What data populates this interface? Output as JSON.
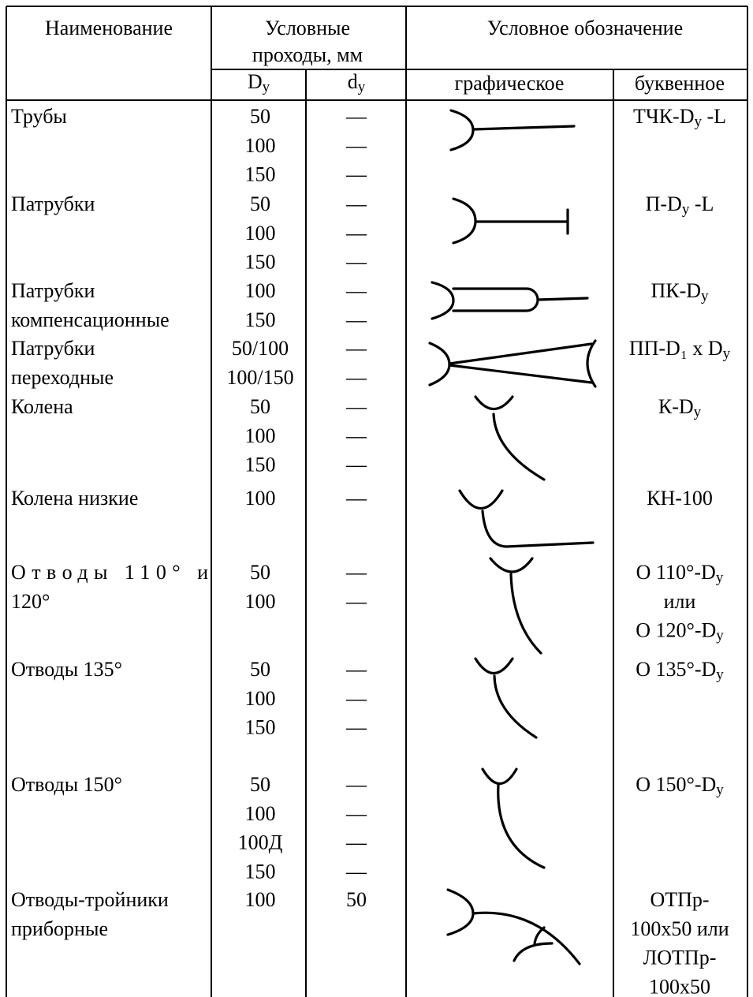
{
  "header": {
    "name": "Наименование",
    "passages": [
      "Условные",
      "проходы, мм"
    ],
    "designation": "Условное обозначение",
    "du": [
      "D",
      {
        "sub": "у"
      }
    ],
    "dd": [
      "d",
      {
        "sub": "у"
      }
    ],
    "graphic": "графическое",
    "letter": "буквенное"
  },
  "rows": [
    {
      "name": [
        "Трубы"
      ],
      "du": [
        "50",
        "100",
        "150"
      ],
      "dd": [
        "—",
        "—",
        "—"
      ],
      "code": [
        [
          "ТЧК-D",
          {
            "sub": "у"
          },
          " -L"
        ]
      ]
    },
    {
      "name": [
        "Патрубки"
      ],
      "du": [
        "50",
        "100",
        "150"
      ],
      "dd": [
        "—",
        "—",
        "—"
      ],
      "code": [
        [
          "П-D",
          {
            "sub": "у"
          },
          " -L"
        ]
      ]
    },
    {
      "name": [
        "Патрубки",
        "компенсационные"
      ],
      "du": [
        "100",
        "150"
      ],
      "dd": [
        "—",
        "—"
      ],
      "code": [
        [
          "ПК-D",
          {
            "sub": "у"
          }
        ]
      ]
    },
    {
      "name": [
        "Патрубки",
        "переходные"
      ],
      "du": [
        "50/100",
        "100/150"
      ],
      "dd": [
        "—",
        "—"
      ],
      "code": [
        [
          "ПП-D₁ х D",
          {
            "sub": "у"
          }
        ]
      ]
    },
    {
      "name": [
        "Колена"
      ],
      "du": [
        "50",
        "100",
        "150"
      ],
      "dd": [
        "—",
        "—",
        "—"
      ],
      "code": [
        [
          "К-D",
          {
            "sub": "у"
          }
        ]
      ]
    },
    {
      "name": [
        "Колена низкие"
      ],
      "du": [
        "100"
      ],
      "dd": [
        "—"
      ],
      "code": [
        [
          "КН-100"
        ]
      ]
    },
    {
      "name": [
        "Отводы 110° и",
        "120°"
      ],
      "du": [
        "50",
        "100"
      ],
      "dd": [
        "—",
        "—"
      ],
      "code": [
        [
          "О 110°-D",
          {
            "sub": "у"
          }
        ],
        [
          "или"
        ],
        [
          "О 120°-D",
          {
            "sub": "у"
          }
        ]
      ]
    },
    {
      "name": [
        "Отводы 135°"
      ],
      "du": [
        "50",
        "100",
        "150"
      ],
      "dd": [
        "—",
        "—",
        "—"
      ],
      "code": [
        [
          "О 135°-D",
          {
            "sub": "у"
          }
        ]
      ]
    },
    {
      "name": [
        "Отводы 150°"
      ],
      "du": [
        "50",
        "100",
        "100Д",
        "150"
      ],
      "dd": [
        "—",
        "—",
        "—",
        "—"
      ],
      "code": [
        [
          "О 150°-D",
          {
            "sub": "у"
          }
        ]
      ]
    },
    {
      "name": [
        "Отводы-тройники",
        "приборные"
      ],
      "du": [
        "100"
      ],
      "dd": [
        "50"
      ],
      "code": [
        [
          "ОТПр-"
        ],
        [
          "100х50 или"
        ],
        [
          "ЛОТПр-"
        ],
        [
          "100х50"
        ]
      ]
    }
  ]
}
